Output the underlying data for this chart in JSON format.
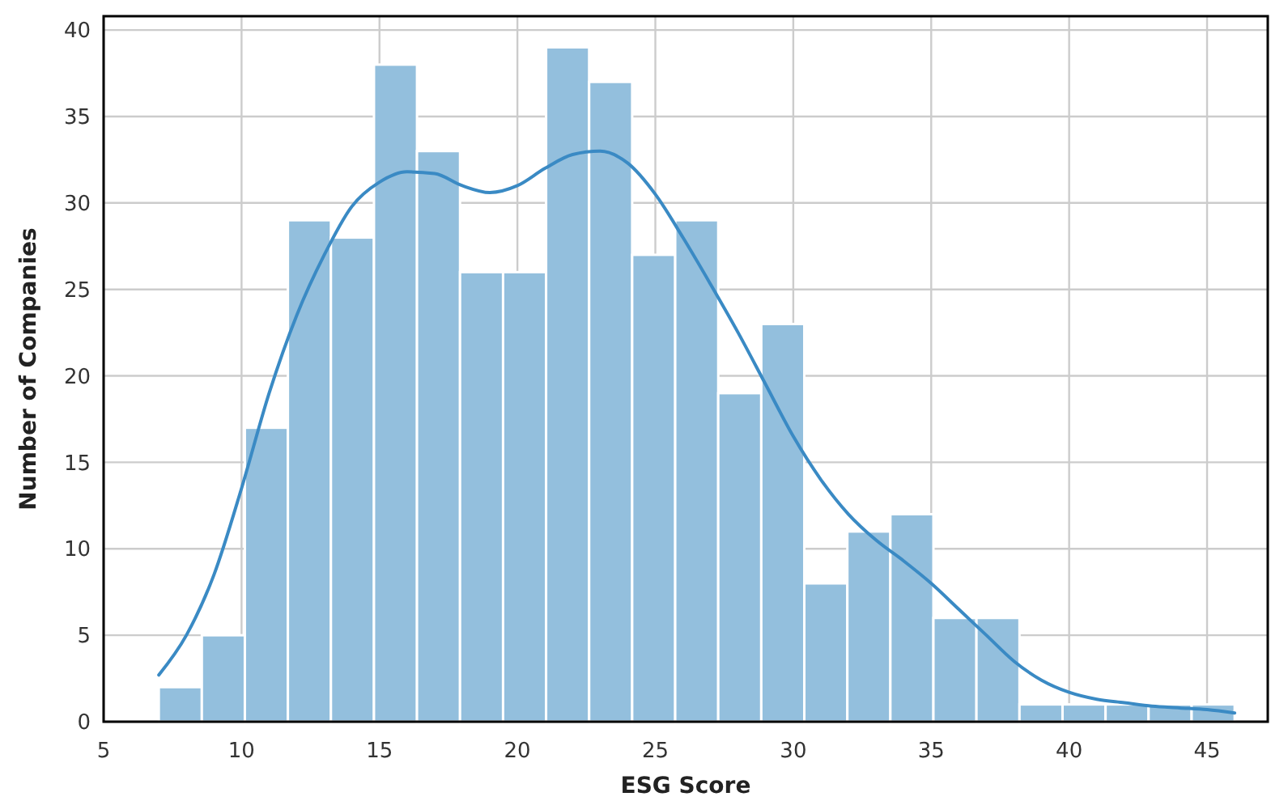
{
  "chart_data": {
    "type": "histogram",
    "xlabel": "ESG Score",
    "ylabel": "Number of Companies",
    "color": "#93bfdd",
    "bins": [
      7.0,
      8.56,
      10.12,
      11.68,
      13.24,
      14.8,
      16.36,
      17.92,
      19.48,
      21.04,
      22.6,
      24.16,
      25.72,
      27.28,
      28.84,
      30.4,
      31.96,
      33.52,
      35.08,
      36.64,
      38.2,
      39.76,
      41.32,
      42.88,
      44.44,
      46.0
    ],
    "values": [
      2,
      5,
      17,
      29,
      28,
      38,
      33,
      26,
      26,
      39,
      37,
      27,
      29,
      19,
      23,
      8,
      11,
      12,
      6,
      6,
      1,
      1,
      1,
      1,
      1
    ],
    "series": [
      {
        "type": "line",
        "color": "#3a8ac4",
        "x": [
          7,
          8,
          9,
          10,
          11,
          12,
          13,
          14,
          15,
          16,
          17,
          18,
          19,
          20,
          21,
          22,
          23,
          24,
          25,
          26,
          27,
          28,
          29,
          30,
          31,
          32,
          33,
          34,
          35,
          36,
          37,
          38,
          39,
          40,
          41,
          42,
          43,
          44,
          45,
          46
        ],
        "values": [
          2.7,
          5,
          8.5,
          13.5,
          19,
          23.5,
          27,
          29.8,
          31.2,
          31.8,
          31.7,
          31.0,
          30.6,
          31.0,
          32.0,
          32.8,
          33.0,
          32.3,
          30.5,
          28,
          25.3,
          22.5,
          19.5,
          16.5,
          14,
          12,
          10.5,
          9.3,
          8,
          6.5,
          5,
          3.5,
          2.4,
          1.7,
          1.3,
          1.1,
          0.9,
          0.8,
          0.7,
          0.5
        ]
      }
    ],
    "xlim": [
      5,
      47.2
    ],
    "ylim": [
      0,
      40.8
    ],
    "xticks": [
      5,
      10,
      15,
      20,
      25,
      30,
      35,
      40,
      45
    ],
    "yticks": [
      0,
      5,
      10,
      15,
      20,
      25,
      30,
      35,
      40
    ],
    "grid": true
  }
}
